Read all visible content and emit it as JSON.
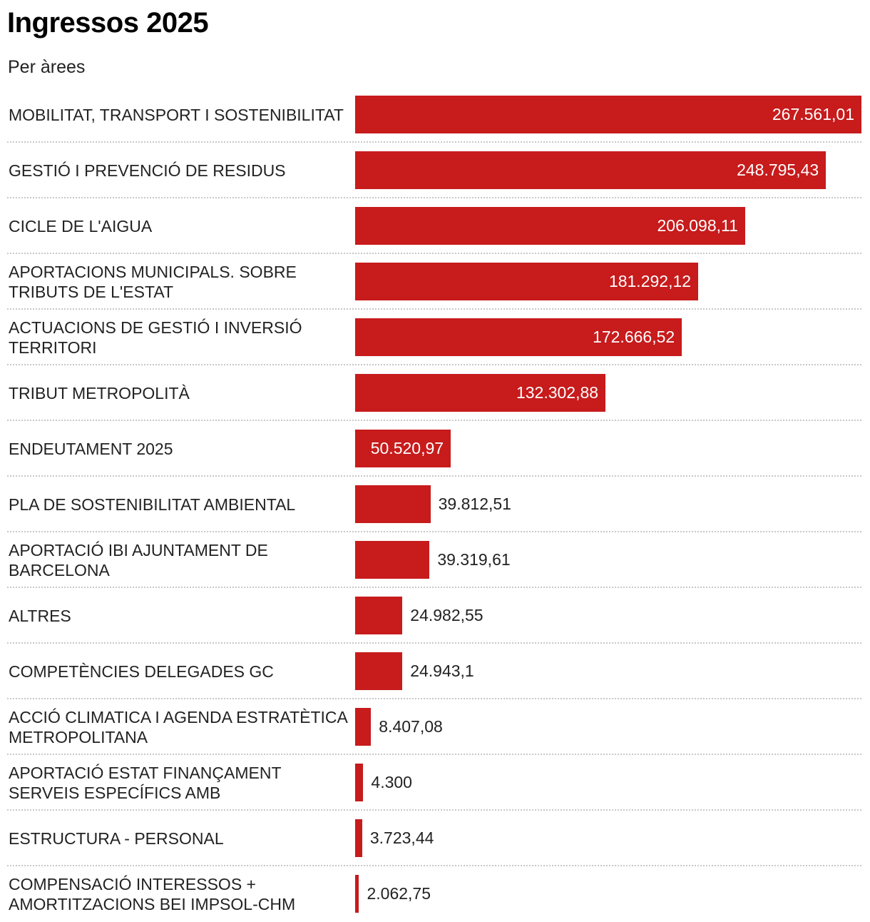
{
  "chart_data": {
    "type": "bar",
    "orientation": "horizontal",
    "title": "Ingressos 2025",
    "subtitle": "Per àrees",
    "xlim": [
      0,
      267561.01
    ],
    "rows": [
      {
        "label": "MOBILITAT, TRANSPORT I SOSTENIBILITAT",
        "value": 267561.01,
        "value_label": "267.561,01"
      },
      {
        "label": "GESTIÓ I PREVENCIÓ DE RESIDUS",
        "value": 248795.43,
        "value_label": "248.795,43"
      },
      {
        "label": "CICLE DE L'AIGUA",
        "value": 206098.11,
        "value_label": "206.098,11"
      },
      {
        "label": "APORTACIONS MUNICIPALS. SOBRE TRIBUTS DE L'ESTAT",
        "value": 181292.12,
        "value_label": "181.292,12"
      },
      {
        "label": "ACTUACIONS DE GESTIÓ I INVERSIÓ TERRITORI",
        "value": 172666.52,
        "value_label": "172.666,52"
      },
      {
        "label": "TRIBUT METROPOLITÀ",
        "value": 132302.88,
        "value_label": "132.302,88"
      },
      {
        "label": "ENDEUTAMENT 2025",
        "value": 50520.97,
        "value_label": "50.520,97"
      },
      {
        "label": "PLA DE SOSTENIBILITAT AMBIENTAL",
        "value": 39812.51,
        "value_label": "39.812,51"
      },
      {
        "label": "APORTACIÓ IBI AJUNTAMENT DE BARCELONA",
        "value": 39319.61,
        "value_label": "39.319,61"
      },
      {
        "label": "ALTRES",
        "value": 24982.55,
        "value_label": "24.982,55"
      },
      {
        "label": "COMPETÈNCIES DELEGADES GC",
        "value": 24943.1,
        "value_label": "24.943,1"
      },
      {
        "label": "ACCIÓ CLIMATICA I AGENDA ESTRATÈTICA METROPOLITANA",
        "value": 8407.08,
        "value_label": "8.407,08"
      },
      {
        "label": "APORTACIÓ ESTAT FINANÇAMENT SERVEIS ESPECÍFICS AMB",
        "value": 4300,
        "value_label": "4.300"
      },
      {
        "label": "ESTRUCTURA - PERSONAL",
        "value": 3723.44,
        "value_label": "3.723,44"
      },
      {
        "label": "COMPENSACIÓ INTERESSOS + AMORTITZACIONS BEI IMPSOL-CHM",
        "value": 2062.75,
        "value_label": "2.062,75"
      }
    ],
    "bar_color": "#c71b1c"
  }
}
